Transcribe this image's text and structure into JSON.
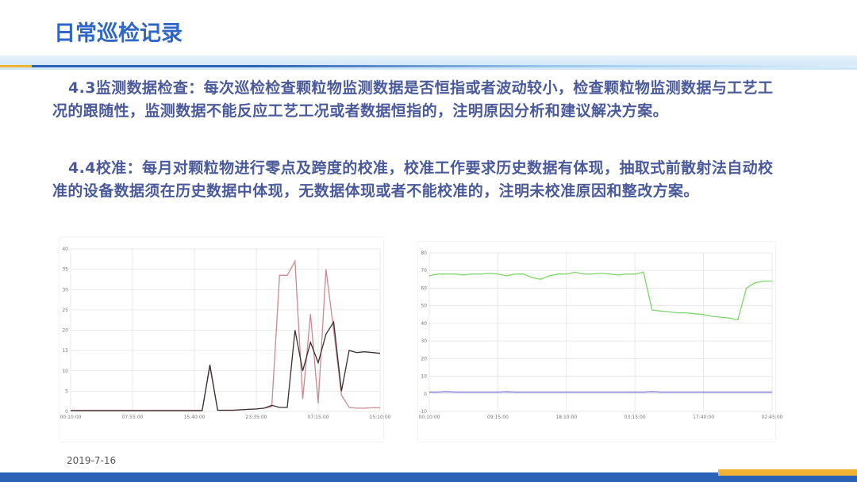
{
  "header": {
    "title": "日常巡检记录"
  },
  "paragraphs": [
    "4.3监测数据检查：每次巡检检查颗粒物监测数据是否恒指或者波动较小，检查颗粒物监测数据与工艺工况的跟随性，监测数据不能反应工艺工况或者数据恒指的，注明原因分析和建议解决方案。",
    "4.4校准：每月对颗粒物进行零点及跨度的校准，校准工作要求历史数据有体现，抽取式前散射法自动校准的设备数据须在历史数据中体现，无数据体现或者不能校准的，注明未校准原因和整改方案。"
  ],
  "chart_data": [
    {
      "type": "line",
      "x": [
        0,
        1,
        2,
        3,
        4,
        5,
        6,
        7,
        8,
        9,
        10,
        11,
        12,
        13,
        14,
        15,
        16,
        17,
        18,
        19,
        20,
        21,
        22,
        23,
        24,
        25,
        26,
        27,
        28,
        29,
        30,
        31,
        32,
        33,
        34,
        35,
        36,
        37,
        38,
        39,
        40
      ],
      "xlim": [
        0,
        40
      ],
      "xticks": [
        {
          "value": 0,
          "label": "00:10:00"
        },
        {
          "value": 8,
          "label": "07:55:00"
        },
        {
          "value": 16,
          "label": "15:40:00"
        },
        {
          "value": 24,
          "label": "23:35:00"
        },
        {
          "value": 32,
          "label": "07:15:00"
        },
        {
          "value": 40,
          "label": "15:10:00"
        }
      ],
      "ylim": [
        0,
        40
      ],
      "yticks": [
        0,
        5,
        10,
        15,
        20,
        25,
        30,
        35,
        40
      ],
      "grid": true,
      "series": [
        {
          "color": "#c98a94",
          "values": [
            0.3,
            0.3,
            0.3,
            0.3,
            0.3,
            0.3,
            0.3,
            0.3,
            0.3,
            0.3,
            0.3,
            0.3,
            0.3,
            0.3,
            0.3,
            0.3,
            0.3,
            0.3,
            11,
            0.3,
            0.3,
            0.3,
            0.4,
            0.5,
            0.6,
            0.8,
            1.2,
            33.5,
            33.5,
            37,
            3,
            24,
            2,
            35,
            20,
            4,
            1,
            0.8,
            0.8,
            0.9,
            0.9
          ]
        },
        {
          "color": "#3a3030",
          "values": [
            0.2,
            0.2,
            0.2,
            0.2,
            0.2,
            0.2,
            0.2,
            0.2,
            0.2,
            0.2,
            0.2,
            0.2,
            0.2,
            0.2,
            0.2,
            0.2,
            0.2,
            0.2,
            11.5,
            0.3,
            0.3,
            0.3,
            0.4,
            0.5,
            0.6,
            0.8,
            1.5,
            1,
            1,
            20,
            10,
            17,
            12,
            19,
            22,
            5,
            15,
            14.5,
            14.7,
            14.5,
            14.3
          ]
        }
      ]
    },
    {
      "type": "line",
      "x": [
        0,
        1,
        2,
        3,
        4,
        5,
        6,
        7,
        8,
        9,
        10,
        11,
        12,
        13,
        14,
        15,
        16,
        17,
        18,
        19,
        20,
        21,
        22,
        23,
        24,
        25,
        26,
        27,
        28,
        29,
        30,
        31,
        32,
        33,
        34,
        35,
        36,
        37,
        38,
        39,
        40
      ],
      "xlim": [
        0,
        40
      ],
      "xticks": [
        {
          "value": 0,
          "label": "00:10:00"
        },
        {
          "value": 8,
          "label": "09:15:00"
        },
        {
          "value": 16,
          "label": "18:10:00"
        },
        {
          "value": 24,
          "label": "03:15:00"
        },
        {
          "value": 32,
          "label": "17:40:00"
        },
        {
          "value": 40,
          "label": "02:45:00"
        }
      ],
      "ylim": [
        -10,
        80
      ],
      "yticks": [
        -10,
        0,
        10,
        20,
        30,
        40,
        50,
        60,
        70,
        80
      ],
      "grid": true,
      "series": [
        {
          "color": "#7fd66a",
          "values": [
            67,
            68,
            68,
            68,
            67.5,
            68,
            68,
            68.5,
            68,
            67,
            68,
            68,
            66,
            65,
            67,
            68,
            68,
            69,
            68,
            68,
            68.5,
            68,
            67.5,
            68,
            68,
            69,
            47.5,
            47,
            46.5,
            46,
            46,
            45.5,
            45,
            44,
            43.5,
            43,
            42,
            60,
            63,
            64,
            64
          ]
        },
        {
          "color": "#6a6ad6",
          "values": [
            1,
            1,
            1.2,
            1,
            1,
            1,
            1,
            1,
            1,
            1.1,
            1,
            1,
            1,
            1,
            1,
            1,
            1,
            1,
            1,
            1,
            1,
            1,
            1,
            1,
            1,
            1,
            1.2,
            1,
            1,
            1,
            1,
            1,
            1,
            1,
            1,
            1,
            1,
            1,
            1,
            1,
            1
          ]
        }
      ]
    }
  ],
  "footer": {
    "date": "2019-7-16"
  }
}
